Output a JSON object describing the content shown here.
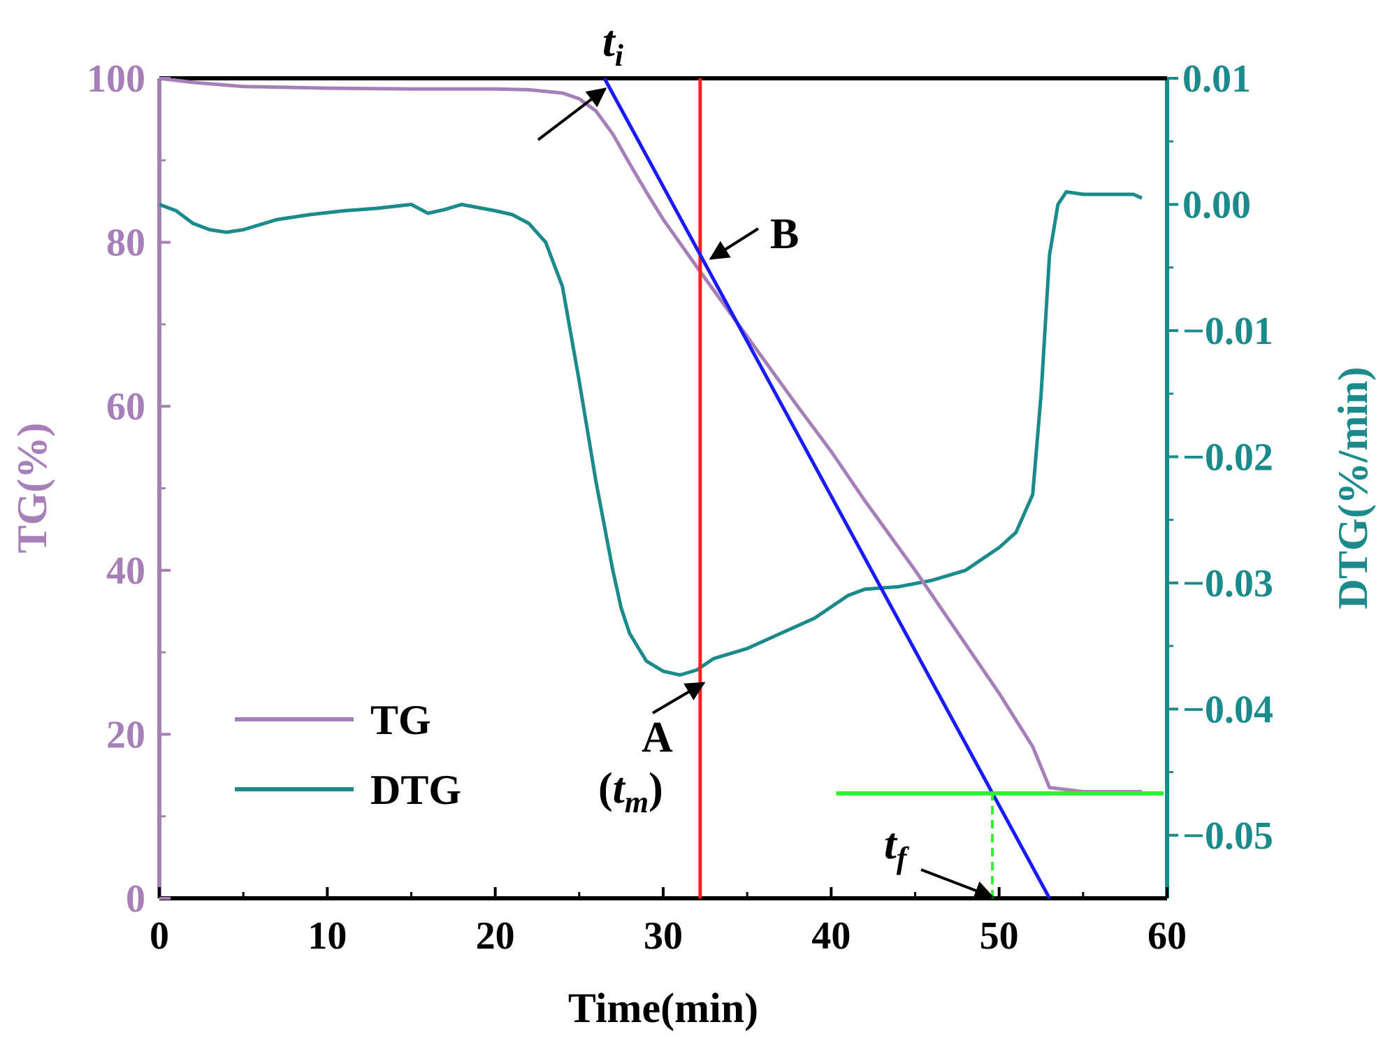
{
  "chart_data": {
    "type": "line",
    "title": "",
    "xlabel": "Time(min)",
    "ylabel_left": "TG(%)",
    "ylabel_right": "DTG(%/min)",
    "xlim": [
      0,
      60
    ],
    "ylim_left": [
      0,
      100
    ],
    "ylim_right": [
      -0.055,
      0.01
    ],
    "x_ticks": [
      0,
      10,
      20,
      30,
      40,
      50,
      60
    ],
    "x_tick_labels": [
      "0",
      "10",
      "20",
      "30",
      "40",
      "50",
      "60"
    ],
    "y_left_ticks": [
      0,
      20,
      40,
      60,
      80,
      100
    ],
    "y_left_tick_labels": [
      "0",
      "20",
      "40",
      "60",
      "80",
      "100"
    ],
    "y_right_ticks": [
      0.01,
      0.0,
      -0.01,
      -0.02,
      -0.03,
      -0.04,
      -0.05
    ],
    "y_right_tick_labels": [
      "0.01",
      "0.00",
      "−0.01",
      "−0.02",
      "−0.03",
      "−0.04",
      "−0.05"
    ],
    "colors": {
      "tg": "#a77fb8",
      "dtg": "#1a8a8a",
      "tangent": "#1a1aff",
      "vline": "#ff2020",
      "hline": "#33ee33",
      "axis": "#000000"
    },
    "series": [
      {
        "name": "TG",
        "axis": "left",
        "x": [
          0,
          2,
          5,
          10,
          15,
          20,
          22,
          24,
          25,
          26,
          27,
          28,
          29,
          30,
          32,
          35,
          38,
          40,
          42,
          45,
          48,
          50,
          52,
          53,
          55,
          58.5
        ],
        "y": [
          100,
          99.5,
          99,
          98.8,
          98.7,
          98.7,
          98.6,
          98.2,
          97.5,
          96,
          93.2,
          89.6,
          86.1,
          82.8,
          77,
          68.5,
          60,
          54.5,
          48.5,
          40,
          31,
          25,
          18.5,
          13.5,
          13,
          13
        ]
      },
      {
        "name": "DTG",
        "axis": "right",
        "x": [
          0,
          1,
          2,
          3,
          4,
          5,
          7,
          9,
          11,
          13,
          15,
          16,
          17,
          18,
          20,
          21,
          22,
          23,
          24,
          25,
          26,
          27,
          27.5,
          28,
          29,
          30,
          31,
          32,
          33,
          35,
          37,
          39,
          41,
          42,
          44,
          46,
          48,
          50,
          51,
          52,
          52.5,
          53,
          53.5,
          54,
          55,
          56,
          57,
          58,
          58.5
        ],
        "y": [
          0.0,
          -0.0005,
          -0.0015,
          -0.002,
          -0.0022,
          -0.002,
          -0.0012,
          -0.0008,
          -0.0005,
          -0.0003,
          0.0,
          -0.0007,
          -0.0004,
          0.0,
          -0.0005,
          -0.0008,
          -0.0015,
          -0.003,
          -0.0065,
          -0.014,
          -0.022,
          -0.029,
          -0.032,
          -0.034,
          -0.0362,
          -0.037,
          -0.0373,
          -0.0369,
          -0.036,
          -0.0352,
          -0.034,
          -0.0328,
          -0.031,
          -0.0305,
          -0.0303,
          -0.0298,
          -0.029,
          -0.0272,
          -0.026,
          -0.023,
          -0.015,
          -0.004,
          0.0,
          0.001,
          0.0008,
          0.0008,
          0.0008,
          0.0008,
          0.0005
        ]
      }
    ],
    "construction_lines": [
      {
        "name": "tangent",
        "axis": "left",
        "x": [
          26.5,
          53
        ],
        "y": [
          100,
          0
        ]
      },
      {
        "name": "tm-vertical",
        "axis": "left",
        "x": [
          32.2,
          32.2
        ],
        "y": [
          0,
          100
        ]
      },
      {
        "name": "final-horizontal",
        "axis": "left",
        "x": [
          40.3,
          59.8
        ],
        "y": [
          12.8,
          12.8
        ]
      },
      {
        "name": "tf-dashed",
        "axis": "left",
        "x": [
          49.6,
          49.6
        ],
        "y": [
          0,
          12.8
        ]
      }
    ],
    "legend": {
      "position": "bottom-left",
      "entries": [
        {
          "label": "TG",
          "series": "TG"
        },
        {
          "label": "DTG",
          "series": "DTG"
        }
      ]
    },
    "annotations": {
      "ti": {
        "main": "t",
        "sub": "i"
      },
      "b": "B",
      "a": "A",
      "tm": {
        "open": "(",
        "main": "t",
        "sub": "m",
        "close": ")"
      },
      "tf": {
        "main": "t",
        "sub": "f"
      }
    }
  }
}
